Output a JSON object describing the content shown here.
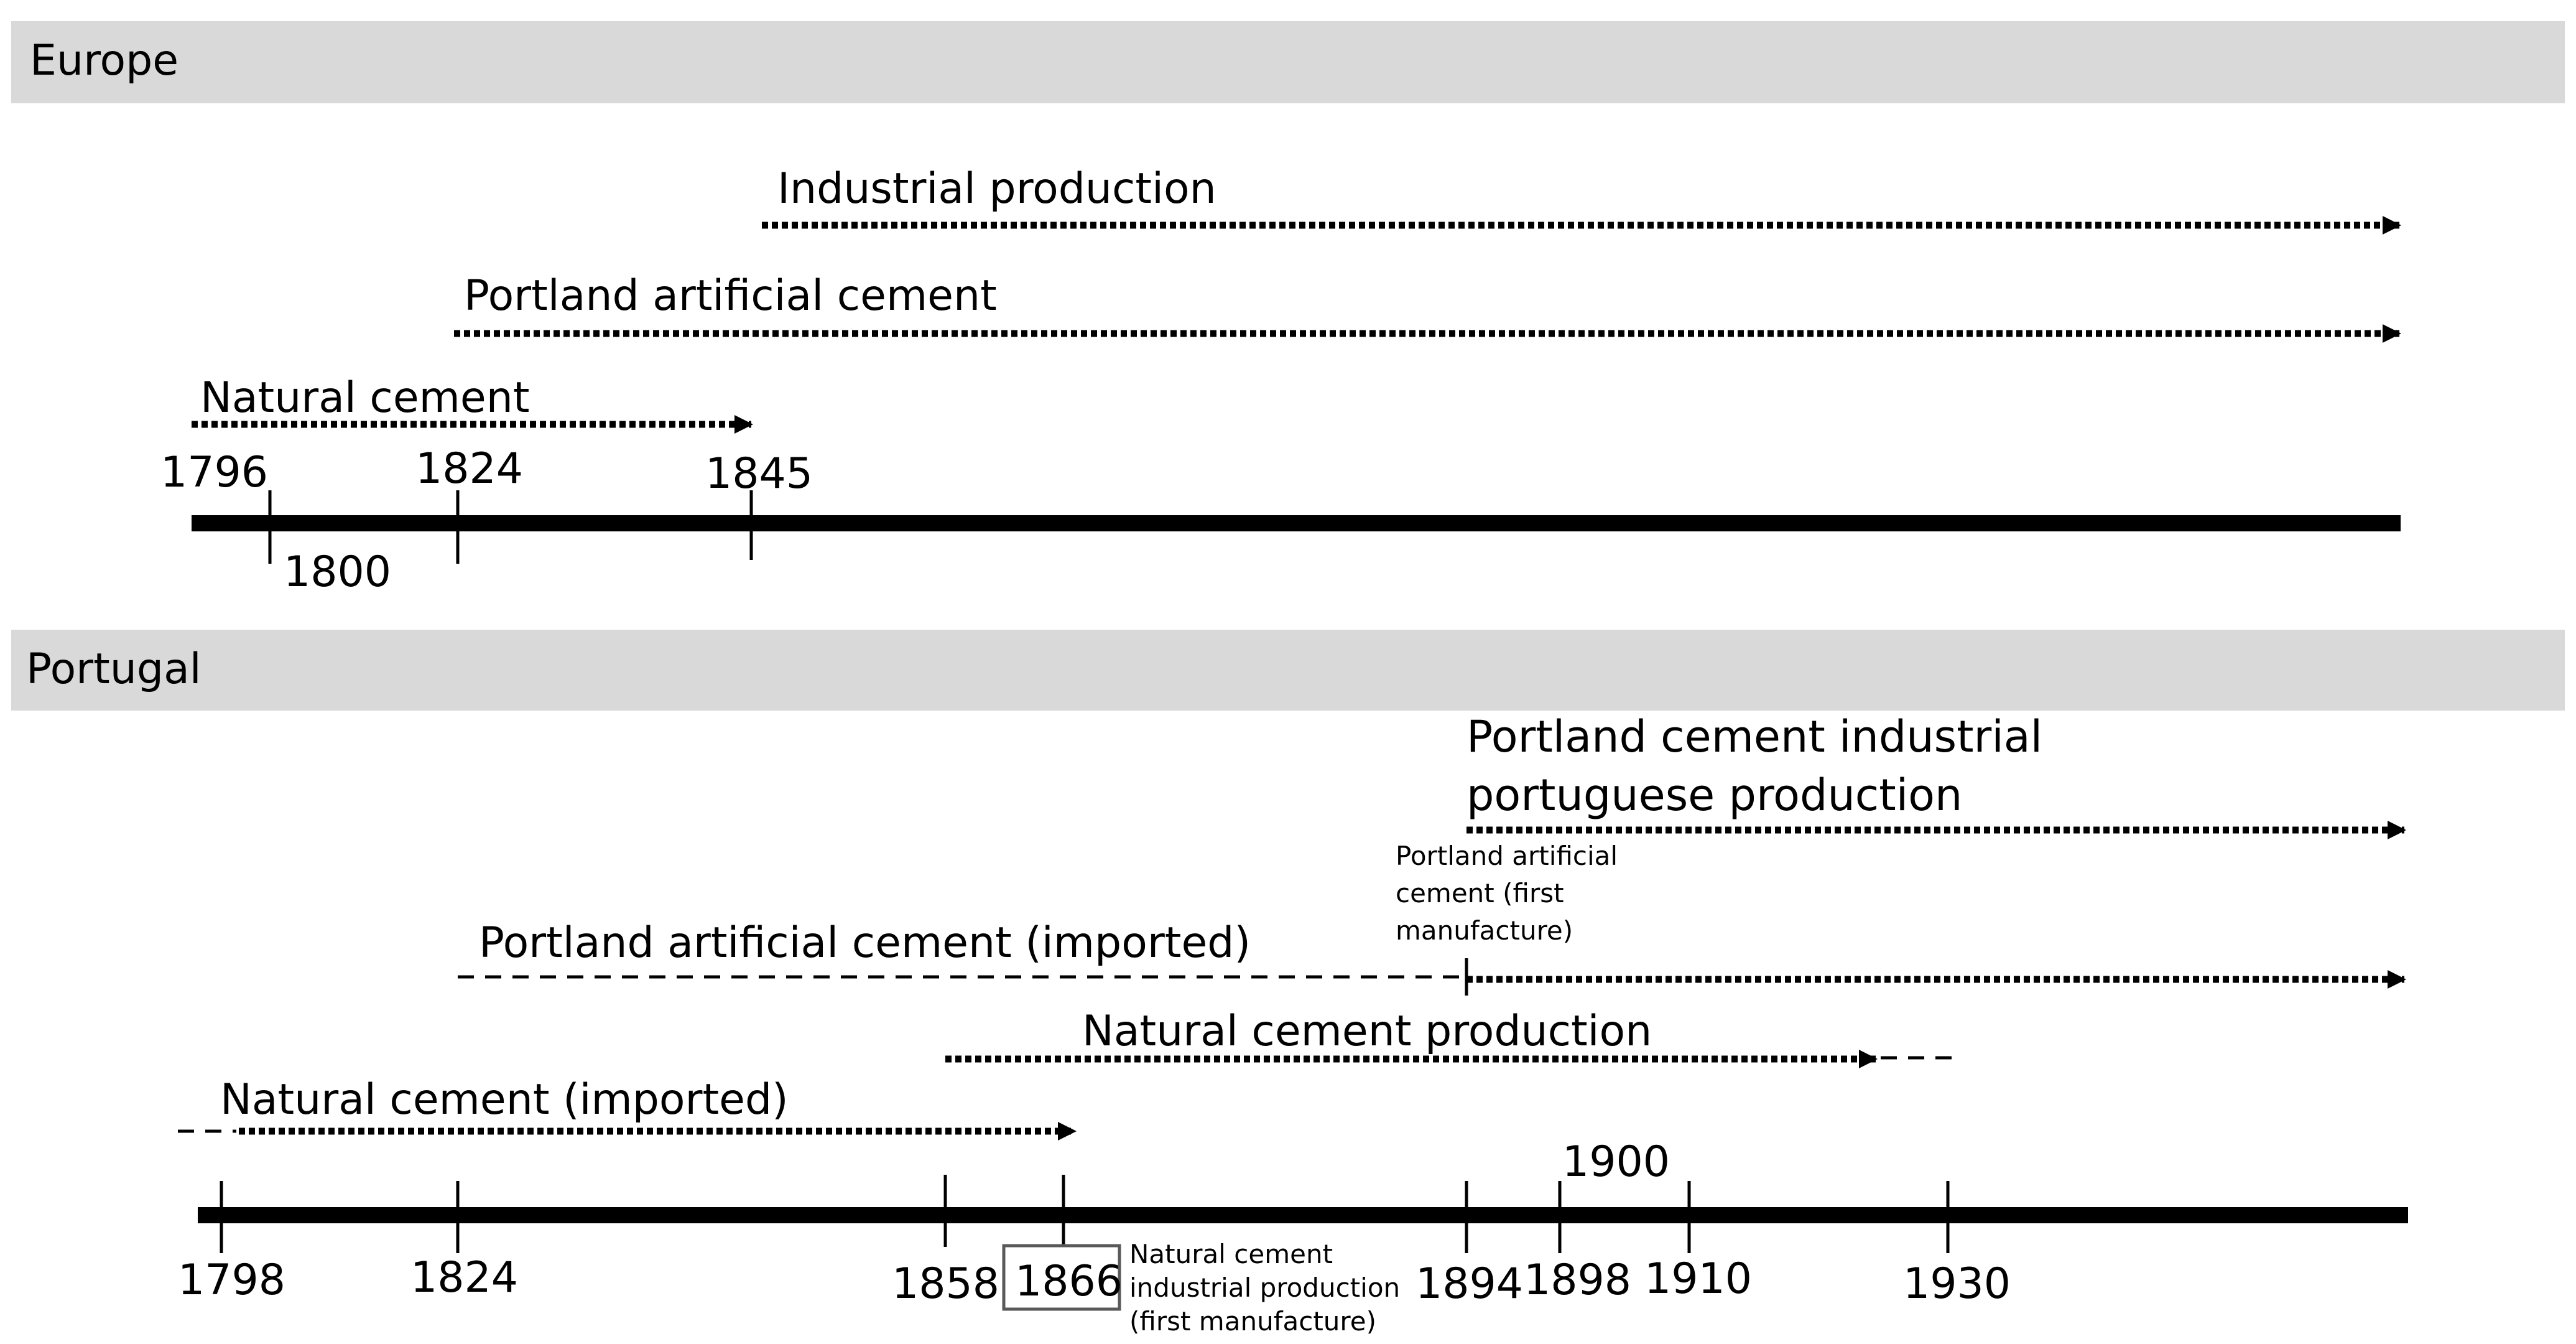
{
  "europe": {
    "header": "Europe",
    "arrows": {
      "industrial": "Industrial production",
      "portland": "Portland artificial cement",
      "natural": "Natural cement"
    },
    "years": [
      "1796",
      "1800",
      "1824",
      "1845"
    ]
  },
  "portugal": {
    "header": "Portugal",
    "arrows": {
      "portland_industrial_line1": "Portland cement industrial",
      "portland_industrial_line2": "portuguese production",
      "portland_imported": "Portland artificial cement (imported)",
      "natural_production": "Natural cement production",
      "natural_imported": "Natural cement (imported)"
    },
    "notes": {
      "portland_first": [
        "Portland artificial",
        "cement (first",
        "manufacture)"
      ],
      "natural_first": [
        "Natural cement",
        "industrial production",
        "(first manufacture)"
      ]
    },
    "years": [
      "1798",
      "1824",
      "1858",
      "1866",
      "1894",
      "1898",
      "1900",
      "1910",
      "1930"
    ]
  },
  "colors": {
    "header_band": "#d9d9d9",
    "line": "#000000",
    "highlight_box": "#595959"
  }
}
